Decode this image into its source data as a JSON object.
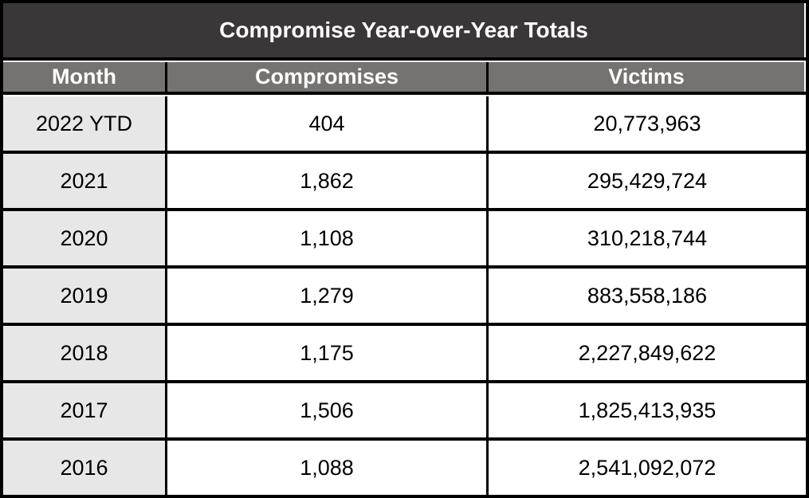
{
  "chart_data": {
    "type": "table",
    "title": "Compromise Year-over-Year Totals",
    "columns": [
      "Month",
      "Compromises",
      "Victims"
    ],
    "rows": [
      [
        "2022 YTD",
        "404",
        "20,773,963"
      ],
      [
        "2021",
        "1,862",
        "295,429,724"
      ],
      [
        "2020",
        "1,108",
        "310,218,744"
      ],
      [
        "2019",
        "1,279",
        "883,558,186"
      ],
      [
        "2018",
        "1,175",
        "2,227,849,622"
      ],
      [
        "2017",
        "1,506",
        "1,825,413,935"
      ],
      [
        "2016",
        "1,088",
        "2,541,092,072"
      ]
    ],
    "layout": {
      "grid": "thick-black-borders",
      "legend": "none"
    }
  },
  "colors": {
    "title_bg": "#3a3738",
    "title_text": "#ffffff",
    "header_bg": "#757272",
    "header_text": "#ffffff",
    "month_col_bg": "#e7e7e7",
    "row_bg": "#ffffff",
    "border": "#000000",
    "data_text": "#000000"
  }
}
